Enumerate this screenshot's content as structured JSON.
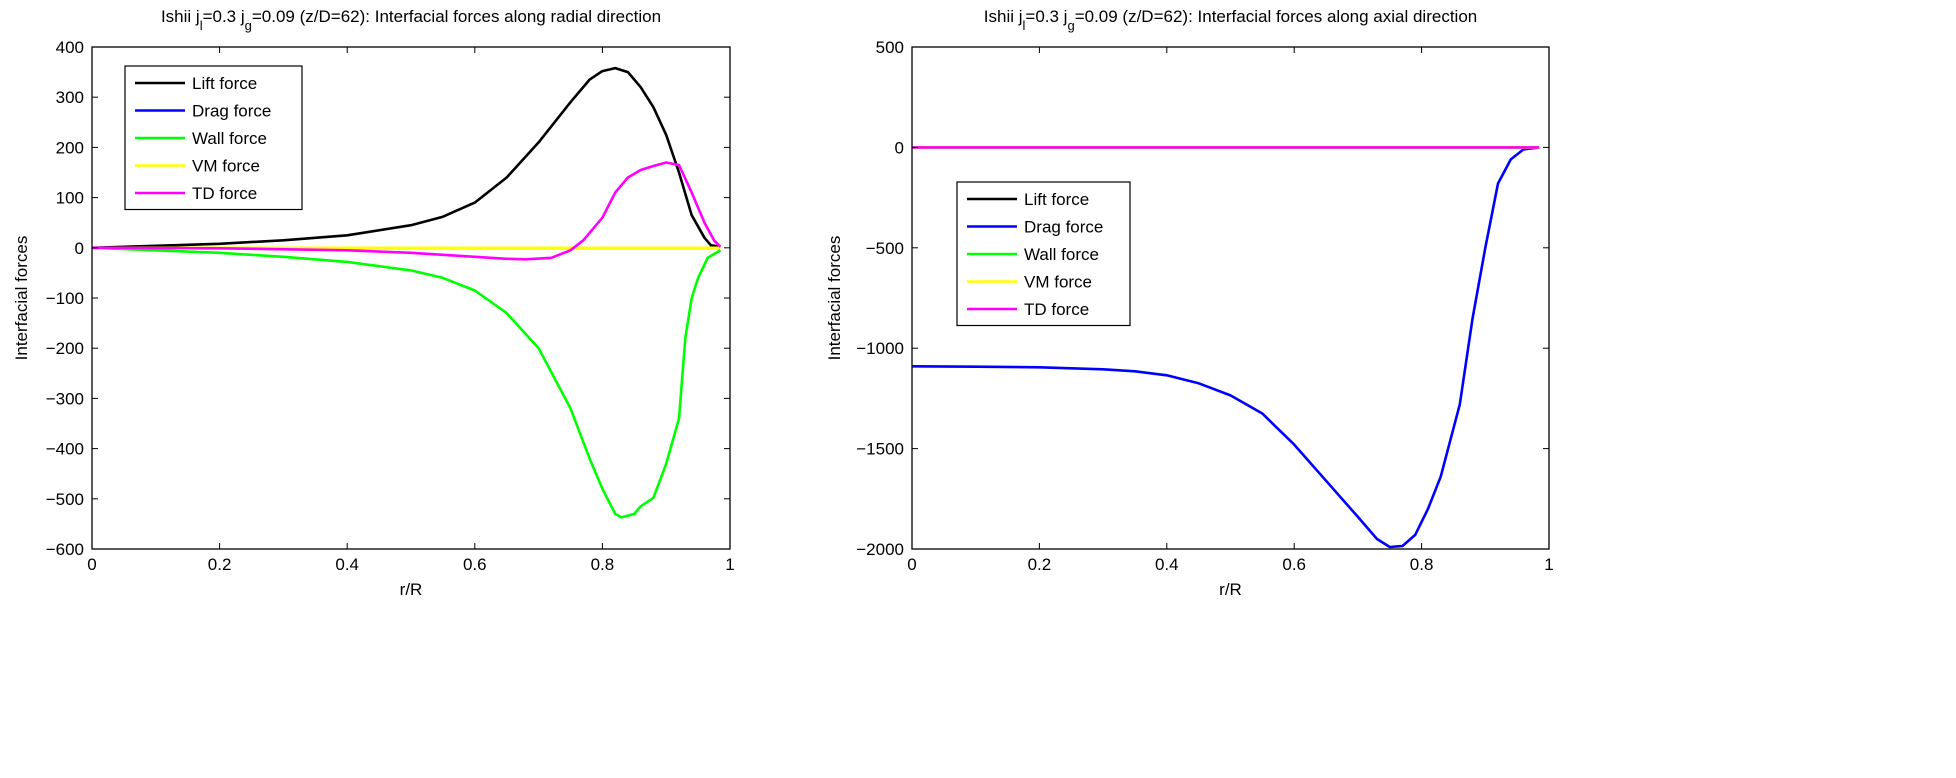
{
  "chart_data": [
    {
      "type": "line",
      "title": {
        "pre": "Ishii j",
        "sub1": "l",
        "mid": "=0.3 j",
        "sub2": "g",
        "post": "=0.09 (z/D=62): Interfacial forces along radial direction"
      },
      "xlabel": "r/R",
      "ylabel": "Interfacial forces",
      "xlim": [
        0,
        1
      ],
      "ylim": [
        -600,
        400
      ],
      "xticks": [
        0,
        0.2,
        0.4,
        0.6,
        0.8,
        1
      ],
      "xtick_labels": [
        "0",
        "0.2",
        "0.4",
        "0.6",
        "0.8",
        "1"
      ],
      "yticks": [
        -600,
        -500,
        -400,
        -300,
        -200,
        -100,
        0,
        100,
        200,
        300,
        400
      ],
      "ytick_labels": [
        "−600",
        "−500",
        "−400",
        "−300",
        "−200",
        "−100",
        "0",
        "100",
        "200",
        "300",
        "400"
      ],
      "grid": false,
      "legend_position": "top-left",
      "series": [
        {
          "name": "Lift force",
          "color": "#000000",
          "x": [
            0,
            0.1,
            0.2,
            0.3,
            0.4,
            0.5,
            0.55,
            0.6,
            0.65,
            0.7,
            0.75,
            0.78,
            0.8,
            0.82,
            0.84,
            0.86,
            0.88,
            0.9,
            0.92,
            0.94,
            0.96,
            0.97,
            0.985
          ],
          "y": [
            0,
            4,
            8,
            15,
            25,
            45,
            62,
            90,
            140,
            210,
            290,
            335,
            352,
            358,
            350,
            320,
            280,
            225,
            150,
            65,
            20,
            5,
            2
          ]
        },
        {
          "name": "Drag force",
          "color": "#0000ff",
          "x": [
            0,
            0.985
          ],
          "y": [
            0,
            0
          ]
        },
        {
          "name": "Wall force",
          "color": "#00ff00",
          "x": [
            0,
            0.1,
            0.2,
            0.3,
            0.4,
            0.5,
            0.55,
            0.6,
            0.65,
            0.7,
            0.75,
            0.78,
            0.8,
            0.82,
            0.83,
            0.85,
            0.86,
            0.88,
            0.9,
            0.92,
            0.93,
            0.94,
            0.95,
            0.965,
            0.985
          ],
          "y": [
            0,
            -5,
            -10,
            -18,
            -28,
            -45,
            -60,
            -85,
            -130,
            -200,
            -320,
            -420,
            -480,
            -530,
            -537,
            -530,
            -515,
            -498,
            -430,
            -340,
            -180,
            -100,
            -60,
            -20,
            -5
          ]
        },
        {
          "name": "VM force",
          "color": "#ffff00",
          "x": [
            0,
            0.985
          ],
          "y": [
            0,
            0
          ]
        },
        {
          "name": "TD force",
          "color": "#ff00ff",
          "x": [
            0,
            0.2,
            0.4,
            0.5,
            0.6,
            0.65,
            0.68,
            0.72,
            0.75,
            0.77,
            0.8,
            0.82,
            0.84,
            0.86,
            0.88,
            0.9,
            0.92,
            0.94,
            0.96,
            0.975,
            0.985
          ],
          "y": [
            0,
            -1,
            -5,
            -10,
            -18,
            -22,
            -23,
            -20,
            -5,
            15,
            60,
            110,
            140,
            155,
            163,
            170,
            165,
            110,
            50,
            15,
            2
          ]
        }
      ]
    },
    {
      "type": "line",
      "title": {
        "pre": "Ishii j",
        "sub1": "l",
        "mid": "=0.3 j",
        "sub2": "g",
        "post": "=0.09 (z/D=62): Interfacial forces along axial direction"
      },
      "xlabel": "r/R",
      "ylabel": "Interfacial forces",
      "xlim": [
        0,
        1
      ],
      "ylim": [
        -2000,
        500
      ],
      "xticks": [
        0,
        0.2,
        0.4,
        0.6,
        0.8,
        1
      ],
      "xtick_labels": [
        "0",
        "0.2",
        "0.4",
        "0.6",
        "0.8",
        "1"
      ],
      "yticks": [
        -2000,
        -1500,
        -1000,
        -500,
        0,
        500
      ],
      "ytick_labels": [
        "−2000",
        "−1500",
        "−1000",
        "−500",
        "0",
        "500"
      ],
      "grid": false,
      "legend_position": "middle-left",
      "series": [
        {
          "name": "Lift force",
          "color": "#000000",
          "x": [
            0,
            0.985
          ],
          "y": [
            0,
            0
          ]
        },
        {
          "name": "Drag force",
          "color": "#0000ff",
          "x": [
            0,
            0.1,
            0.2,
            0.3,
            0.35,
            0.4,
            0.45,
            0.5,
            0.55,
            0.6,
            0.65,
            0.7,
            0.73,
            0.75,
            0.77,
            0.79,
            0.81,
            0.83,
            0.86,
            0.88,
            0.9,
            0.92,
            0.94,
            0.96,
            0.985
          ],
          "y": [
            -1090,
            -1092,
            -1095,
            -1105,
            -1115,
            -1135,
            -1175,
            -1235,
            -1325,
            -1480,
            -1660,
            -1840,
            -1950,
            -1990,
            -1985,
            -1930,
            -1800,
            -1640,
            -1280,
            -850,
            -500,
            -180,
            -60,
            -10,
            0
          ]
        },
        {
          "name": "Wall force",
          "color": "#00ff00",
          "x": [
            0,
            0.985
          ],
          "y": [
            0,
            0
          ]
        },
        {
          "name": "VM force",
          "color": "#ffff00",
          "x": [
            0,
            0.985
          ],
          "y": [
            0,
            0
          ]
        },
        {
          "name": "TD force",
          "color": "#ff00ff",
          "x": [
            0,
            0.985
          ],
          "y": [
            0,
            0
          ]
        }
      ]
    }
  ]
}
